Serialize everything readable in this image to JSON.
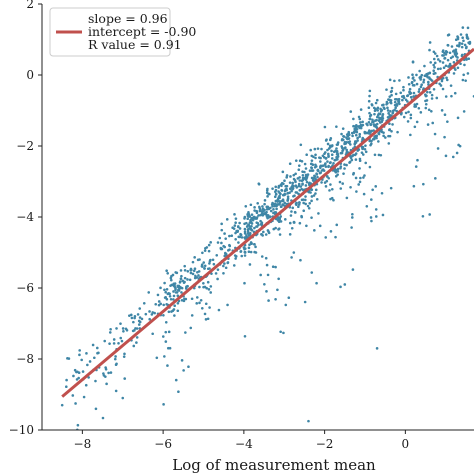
{
  "chart_data": {
    "type": "scatter",
    "title": "",
    "xlabel": "Log of measurement mean",
    "ylabel": "",
    "xlim": [
      -9.0,
      1.7
    ],
    "ylim": [
      -10,
      2
    ],
    "x_ticks": [
      -8,
      -6,
      -4,
      -2,
      0
    ],
    "y_ticks": [
      2,
      0,
      -2,
      -4,
      -6,
      -8,
      -10
    ],
    "x_tick_labels": [
      "−8",
      "−6",
      "−4",
      "−2",
      "0"
    ],
    "y_tick_labels": [
      "2",
      "0",
      "−2",
      "−4",
      "−6",
      "−8",
      "−10"
    ],
    "grid": false,
    "legend_position": "top-left",
    "legend": {
      "entries": [
        "slope = 0.96",
        "intercept = -0.90",
        "R value = 0.91"
      ]
    },
    "fit_line": {
      "slope": 0.96,
      "intercept": -0.9,
      "x_range": [
        -8.5,
        1.7
      ],
      "color": "#c0504d"
    },
    "scatter": {
      "color": "#3f86a6",
      "approx_count": 1500,
      "description_points": [
        {
          "x": -8.5,
          "y": -9.3
        },
        {
          "x": -7.4,
          "y": -8.7
        },
        {
          "x": -7.0,
          "y": -9.1
        },
        {
          "x": -2.4,
          "y": -9.75
        },
        {
          "x": -0.7,
          "y": -7.7
        },
        {
          "x": 1.6,
          "y": 0.9
        },
        {
          "x": 1.7,
          "y": -0.6
        },
        {
          "x": 0.3,
          "y": -2.4
        },
        {
          "x": -1.5,
          "y": -5.9
        },
        {
          "x": -3.7,
          "y": -5.0
        }
      ]
    }
  }
}
